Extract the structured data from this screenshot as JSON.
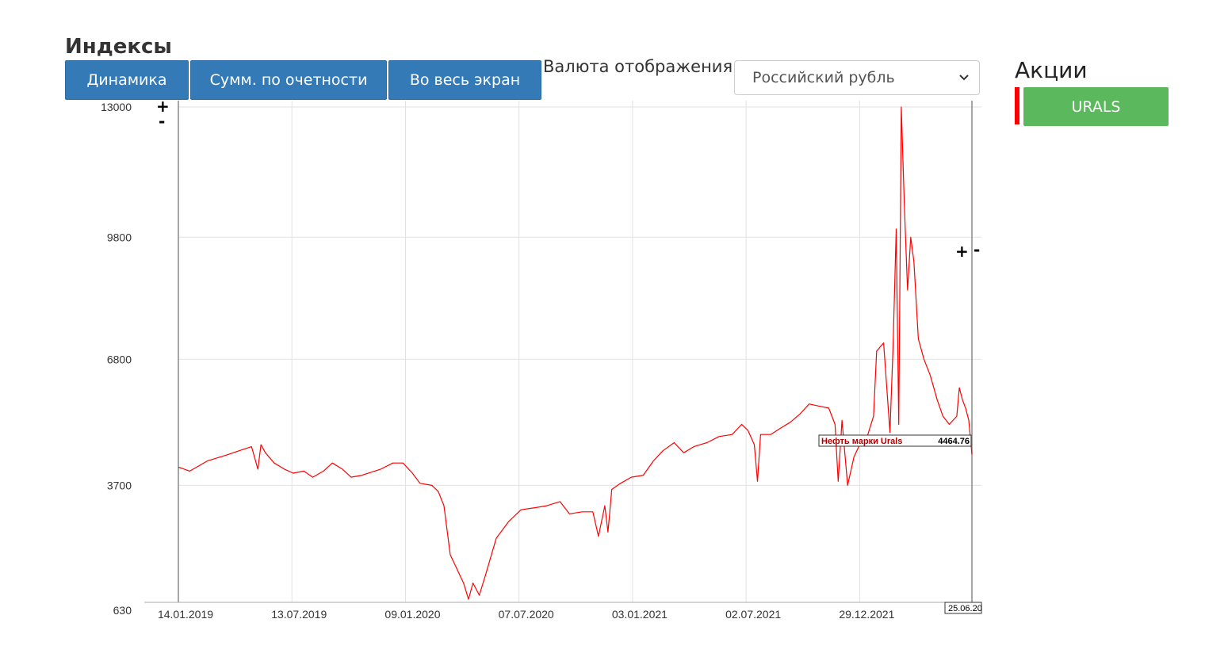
{
  "header": {
    "title": "Индексы",
    "buttons": [
      "Динамика",
      "Сумм. по очетности",
      "Во весь экран"
    ],
    "currency_label": "Валюта отображения",
    "currency_value": "Российский рубль"
  },
  "sidebar": {
    "title": "Акции",
    "ticker": "URALS",
    "ticker_color": "#ff0000",
    "ticker_button_color": "#5cb85c"
  },
  "zoom_controls": {
    "plus": "+",
    "minus": "-"
  },
  "chart_data": {
    "type": "line",
    "x_ticks": [
      "14.01.2019",
      "13.07.2019",
      "09.01.2020",
      "07.07.2020",
      "03.01.2021",
      "02.07.2021",
      "29.12.2021"
    ],
    "x_end_label": "25.06.20",
    "y_ticks": [
      630,
      3700,
      6800,
      9800,
      13000
    ],
    "ylim": [
      630,
      13000
    ],
    "grid": true,
    "series": [
      {
        "name": "Нефть марки Urals",
        "color": "#ff0000",
        "last_value": "4464.76",
        "points": [
          [
            "2019-01-14",
            4150
          ],
          [
            "2019-02-01",
            4050
          ],
          [
            "2019-03-01",
            4300
          ],
          [
            "2019-04-01",
            4450
          ],
          [
            "2019-04-20",
            4550
          ],
          [
            "2019-05-10",
            4650
          ],
          [
            "2019-05-20",
            4100
          ],
          [
            "2019-05-25",
            4700
          ],
          [
            "2019-06-01",
            4500
          ],
          [
            "2019-06-15",
            4250
          ],
          [
            "2019-07-01",
            4100
          ],
          [
            "2019-07-15",
            4000
          ],
          [
            "2019-08-01",
            4050
          ],
          [
            "2019-08-15",
            3900
          ],
          [
            "2019-09-01",
            4050
          ],
          [
            "2019-09-15",
            4250
          ],
          [
            "2019-10-01",
            4100
          ],
          [
            "2019-10-15",
            3900
          ],
          [
            "2019-11-01",
            3950
          ],
          [
            "2019-12-01",
            4100
          ],
          [
            "2019-12-20",
            4250
          ],
          [
            "2020-01-05",
            4250
          ],
          [
            "2020-01-20",
            4000
          ],
          [
            "2020-02-01",
            3750
          ],
          [
            "2020-02-20",
            3700
          ],
          [
            "2020-03-01",
            3550
          ],
          [
            "2020-03-10",
            3200
          ],
          [
            "2020-03-20",
            2000
          ],
          [
            "2020-04-01",
            1600
          ],
          [
            "2020-04-10",
            1300
          ],
          [
            "2020-04-18",
            900
          ],
          [
            "2020-04-25",
            1300
          ],
          [
            "2020-05-05",
            1000
          ],
          [
            "2020-05-15",
            1500
          ],
          [
            "2020-06-01",
            2400
          ],
          [
            "2020-06-20",
            2800
          ],
          [
            "2020-07-10",
            3100
          ],
          [
            "2020-08-01",
            3150
          ],
          [
            "2020-08-20",
            3200
          ],
          [
            "2020-09-10",
            3300
          ],
          [
            "2020-09-25",
            3000
          ],
          [
            "2020-10-15",
            3050
          ],
          [
            "2020-11-01",
            3050
          ],
          [
            "2020-11-10",
            2450
          ],
          [
            "2020-11-20",
            3200
          ],
          [
            "2020-11-25",
            2550
          ],
          [
            "2020-12-01",
            3600
          ],
          [
            "2020-12-15",
            3750
          ],
          [
            "2021-01-01",
            3900
          ],
          [
            "2021-01-20",
            3950
          ],
          [
            "2021-02-05",
            4300
          ],
          [
            "2021-02-20",
            4550
          ],
          [
            "2021-03-10",
            4750
          ],
          [
            "2021-03-25",
            4500
          ],
          [
            "2021-04-10",
            4650
          ],
          [
            "2021-05-01",
            4750
          ],
          [
            "2021-05-20",
            4900
          ],
          [
            "2021-06-10",
            4950
          ],
          [
            "2021-06-25",
            5200
          ],
          [
            "2021-07-05",
            5050
          ],
          [
            "2021-07-15",
            4700
          ],
          [
            "2021-07-20",
            3800
          ],
          [
            "2021-07-25",
            4950
          ],
          [
            "2021-08-10",
            4950
          ],
          [
            "2021-08-25",
            5100
          ],
          [
            "2021-09-10",
            5250
          ],
          [
            "2021-09-25",
            5450
          ],
          [
            "2021-10-10",
            5700
          ],
          [
            "2021-10-25",
            5650
          ],
          [
            "2021-11-10",
            5600
          ],
          [
            "2021-11-20",
            5200
          ],
          [
            "2021-11-25",
            3800
          ],
          [
            "2021-12-01",
            5300
          ],
          [
            "2021-12-10",
            3700
          ],
          [
            "2021-12-20",
            4400
          ],
          [
            "2022-01-01",
            4800
          ],
          [
            "2022-01-10",
            4900
          ],
          [
            "2022-01-20",
            5400
          ],
          [
            "2022-01-25",
            7000
          ],
          [
            "2022-02-05",
            7200
          ],
          [
            "2022-02-15",
            5000
          ],
          [
            "2022-02-20",
            7100
          ],
          [
            "2022-02-25",
            10000
          ],
          [
            "2022-03-01",
            5200
          ],
          [
            "2022-03-05",
            13000
          ],
          [
            "2022-03-10",
            10500
          ],
          [
            "2022-03-15",
            8500
          ],
          [
            "2022-03-20",
            9800
          ],
          [
            "2022-03-25",
            9200
          ],
          [
            "2022-04-01",
            7300
          ],
          [
            "2022-04-10",
            6800
          ],
          [
            "2022-04-20",
            6400
          ],
          [
            "2022-05-01",
            5800
          ],
          [
            "2022-05-10",
            5400
          ],
          [
            "2022-05-20",
            5200
          ],
          [
            "2022-06-01",
            5400
          ],
          [
            "2022-06-05",
            6100
          ],
          [
            "2022-06-10",
            5800
          ],
          [
            "2022-06-15",
            5600
          ],
          [
            "2022-06-20",
            5300
          ],
          [
            "2022-06-25",
            4464.76
          ]
        ]
      }
    ]
  }
}
